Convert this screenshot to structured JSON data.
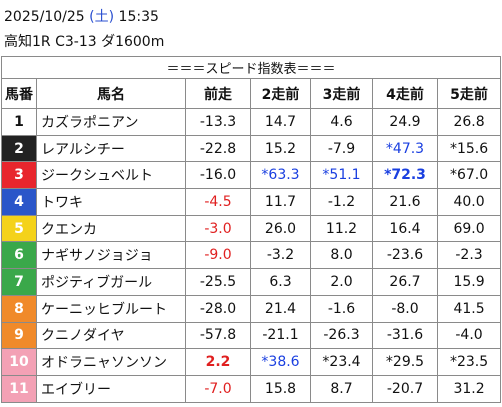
{
  "header": {
    "date": "2025/10/25",
    "weekday": "(土)",
    "time": "15:35",
    "race": "高知1R C3-13 ダ1600m"
  },
  "table": {
    "title": "＝＝＝スピード指数表＝＝＝",
    "columns": [
      "馬番",
      "馬名",
      "前走",
      "2走前",
      "3走前",
      "4走前",
      "5走前"
    ],
    "rows": [
      [
        "1",
        "カズラポニアン",
        "-13.3",
        "14.7",
        "4.6",
        "24.9",
        "26.8"
      ],
      [
        "2",
        "レアルシチー",
        "-22.8",
        "15.2",
        "-7.9",
        "*47.3",
        "*15.6"
      ],
      [
        "3",
        "ジークシュベルト",
        "-16.0",
        "*63.3",
        "*51.1",
        "*72.3",
        "*67.0"
      ],
      [
        "4",
        "トワキ",
        "-4.5",
        "11.7",
        "-1.2",
        "21.6",
        "40.0"
      ],
      [
        "5",
        "クエンカ",
        "-3.0",
        "26.0",
        "11.2",
        "16.4",
        "69.0"
      ],
      [
        "6",
        "ナギサノジョジョ",
        "-9.0",
        "-3.2",
        "8.0",
        "-23.6",
        "-2.3"
      ],
      [
        "7",
        "ポジティブガール",
        "-25.5",
        "6.3",
        "2.0",
        "26.7",
        "15.9"
      ],
      [
        "8",
        "ケーニッヒブルート",
        "-28.0",
        "21.4",
        "-1.6",
        "-8.0",
        "41.5"
      ],
      [
        "9",
        "クニノダイヤ",
        "-57.8",
        "-21.1",
        "-26.3",
        "-31.6",
        "-4.0"
      ],
      [
        "10",
        "オドラニャソンソン",
        "2.2",
        "*38.6",
        "*23.4",
        "*29.5",
        "*23.5"
      ],
      [
        "11",
        "エイブリー",
        "-7.0",
        "15.8",
        "8.7",
        "-20.7",
        "31.2"
      ]
    ]
  }
}
